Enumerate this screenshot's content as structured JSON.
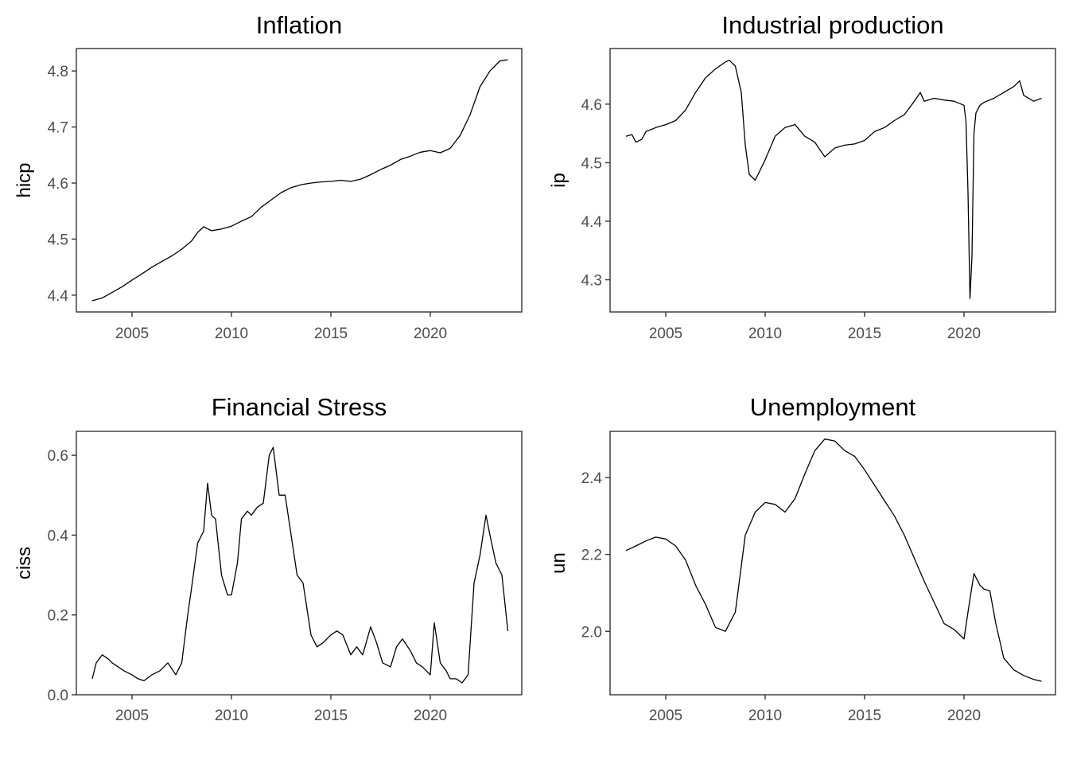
{
  "line_color": "#000000",
  "chart_data": [
    {
      "type": "line",
      "title": "Inflation",
      "xlabel": "",
      "ylabel": "hicp",
      "xlim": [
        2002.2,
        2024.6
      ],
      "ylim": [
        4.37,
        4.84
      ],
      "xticks": [
        2005,
        2010,
        2015,
        2020
      ],
      "xtick_labels": [
        "2005",
        "2010",
        "2015",
        "2020"
      ],
      "yticks": [
        4.4,
        4.5,
        4.6,
        4.7,
        4.8
      ],
      "ytick_labels": [
        "4.4",
        "4.5",
        "4.6",
        "4.7",
        "4.8"
      ],
      "grid": false,
      "series": [
        {
          "x": [
            2003.0,
            2003.5,
            2004.0,
            2004.5,
            2005.0,
            2005.5,
            2006.0,
            2006.5,
            2007.0,
            2007.5,
            2008.0,
            2008.3,
            2008.6,
            2009.0,
            2009.5,
            2010.0,
            2010.5,
            2011.0,
            2011.5,
            2012.0,
            2012.5,
            2013.0,
            2013.5,
            2014.0,
            2014.5,
            2015.0,
            2015.5,
            2016.0,
            2016.5,
            2017.0,
            2017.5,
            2018.0,
            2018.5,
            2019.0,
            2019.5,
            2020.0,
            2020.5,
            2021.0,
            2021.5,
            2022.0,
            2022.5,
            2023.0,
            2023.5,
            2023.9
          ],
          "y": [
            4.39,
            4.395,
            4.405,
            4.415,
            4.427,
            4.438,
            4.45,
            4.46,
            4.47,
            4.482,
            4.497,
            4.512,
            4.522,
            4.515,
            4.518,
            4.523,
            4.532,
            4.54,
            4.557,
            4.57,
            4.583,
            4.592,
            4.597,
            4.6,
            4.602,
            4.603,
            4.605,
            4.603,
            4.607,
            4.615,
            4.624,
            4.632,
            4.642,
            4.648,
            4.655,
            4.658,
            4.654,
            4.662,
            4.685,
            4.722,
            4.772,
            4.8,
            4.818,
            4.82
          ]
        }
      ]
    },
    {
      "type": "line",
      "title": "Industrial production",
      "xlabel": "",
      "ylabel": "ip",
      "xlim": [
        2002.2,
        2024.6
      ],
      "ylim": [
        4.245,
        4.695
      ],
      "xticks": [
        2005,
        2010,
        2015,
        2020
      ],
      "xtick_labels": [
        "2005",
        "2010",
        "2015",
        "2020"
      ],
      "yticks": [
        4.3,
        4.4,
        4.5,
        4.6
      ],
      "ytick_labels": [
        "4.3",
        "4.4",
        "4.5",
        "4.6"
      ],
      "grid": false,
      "series": [
        {
          "x": [
            2003.0,
            2003.3,
            2003.5,
            2003.8,
            2004.0,
            2004.5,
            2005.0,
            2005.5,
            2006.0,
            2006.5,
            2007.0,
            2007.5,
            2008.0,
            2008.2,
            2008.5,
            2008.8,
            2009.0,
            2009.2,
            2009.5,
            2010.0,
            2010.5,
            2011.0,
            2011.5,
            2012.0,
            2012.5,
            2013.0,
            2013.5,
            2014.0,
            2014.5,
            2015.0,
            2015.5,
            2016.0,
            2016.5,
            2017.0,
            2017.5,
            2017.8,
            2018.0,
            2018.5,
            2019.0,
            2019.5,
            2020.0,
            2020.1,
            2020.2,
            2020.3,
            2020.4,
            2020.5,
            2020.6,
            2020.8,
            2021.0,
            2021.5,
            2022.0,
            2022.5,
            2022.8,
            2023.0,
            2023.5,
            2023.9
          ],
          "y": [
            4.545,
            4.548,
            4.535,
            4.54,
            4.553,
            4.56,
            4.565,
            4.572,
            4.59,
            4.62,
            4.645,
            4.66,
            4.672,
            4.675,
            4.665,
            4.62,
            4.53,
            4.48,
            4.47,
            4.505,
            4.545,
            4.56,
            4.565,
            4.545,
            4.535,
            4.51,
            4.525,
            4.53,
            4.532,
            4.538,
            4.553,
            4.56,
            4.572,
            4.582,
            4.605,
            4.62,
            4.605,
            4.61,
            4.607,
            4.605,
            4.598,
            4.57,
            4.45,
            4.268,
            4.34,
            4.55,
            4.585,
            4.598,
            4.603,
            4.61,
            4.62,
            4.63,
            4.64,
            4.615,
            4.605,
            4.61
          ]
        }
      ]
    },
    {
      "type": "line",
      "title": "Financial Stress",
      "xlabel": "",
      "ylabel": "ciss",
      "xlim": [
        2002.2,
        2024.6
      ],
      "ylim": [
        0.0,
        0.66
      ],
      "xticks": [
        2005,
        2010,
        2015,
        2020
      ],
      "xtick_labels": [
        "2005",
        "2010",
        "2015",
        "2020"
      ],
      "yticks": [
        0.0,
        0.2,
        0.4,
        0.6
      ],
      "ytick_labels": [
        "0.0",
        "0.2",
        "0.4",
        "0.6"
      ],
      "grid": false,
      "series": [
        {
          "x": [
            2003.0,
            2003.2,
            2003.5,
            2003.8,
            2004.0,
            2004.3,
            2004.6,
            2005.0,
            2005.3,
            2005.6,
            2006.0,
            2006.4,
            2006.8,
            2007.2,
            2007.5,
            2007.8,
            2008.0,
            2008.3,
            2008.6,
            2008.8,
            2009.0,
            2009.2,
            2009.5,
            2009.8,
            2010.0,
            2010.3,
            2010.5,
            2010.8,
            2011.0,
            2011.3,
            2011.6,
            2011.9,
            2012.1,
            2012.4,
            2012.7,
            2013.0,
            2013.3,
            2013.6,
            2014.0,
            2014.3,
            2014.6,
            2015.0,
            2015.3,
            2015.6,
            2016.0,
            2016.3,
            2016.6,
            2017.0,
            2017.3,
            2017.6,
            2018.0,
            2018.3,
            2018.6,
            2019.0,
            2019.3,
            2019.6,
            2020.0,
            2020.2,
            2020.5,
            2020.8,
            2021.0,
            2021.3,
            2021.6,
            2021.9,
            2022.2,
            2022.5,
            2022.8,
            2023.0,
            2023.3,
            2023.6,
            2023.9
          ],
          "y": [
            0.04,
            0.08,
            0.1,
            0.09,
            0.08,
            0.07,
            0.06,
            0.05,
            0.04,
            0.035,
            0.05,
            0.06,
            0.08,
            0.05,
            0.08,
            0.2,
            0.27,
            0.38,
            0.41,
            0.53,
            0.45,
            0.44,
            0.3,
            0.25,
            0.25,
            0.33,
            0.44,
            0.46,
            0.45,
            0.47,
            0.48,
            0.6,
            0.62,
            0.5,
            0.5,
            0.4,
            0.3,
            0.28,
            0.15,
            0.12,
            0.13,
            0.15,
            0.16,
            0.15,
            0.1,
            0.12,
            0.1,
            0.17,
            0.13,
            0.08,
            0.07,
            0.12,
            0.14,
            0.11,
            0.08,
            0.07,
            0.05,
            0.18,
            0.08,
            0.06,
            0.04,
            0.04,
            0.03,
            0.05,
            0.28,
            0.35,
            0.45,
            0.4,
            0.33,
            0.3,
            0.16
          ]
        }
      ]
    },
    {
      "type": "line",
      "title": "Unemployment",
      "xlabel": "",
      "ylabel": "un",
      "xlim": [
        2002.2,
        2024.6
      ],
      "ylim": [
        1.835,
        2.52
      ],
      "xticks": [
        2005,
        2010,
        2015,
        2020
      ],
      "xtick_labels": [
        "2005",
        "2010",
        "2015",
        "2020"
      ],
      "yticks": [
        2.0,
        2.2,
        2.4
      ],
      "ytick_labels": [
        "2.0",
        "2.2",
        "2.4"
      ],
      "grid": false,
      "series": [
        {
          "x": [
            2003.0,
            2003.5,
            2004.0,
            2004.5,
            2005.0,
            2005.5,
            2006.0,
            2006.5,
            2007.0,
            2007.5,
            2008.0,
            2008.5,
            2009.0,
            2009.5,
            2010.0,
            2010.5,
            2011.0,
            2011.5,
            2012.0,
            2012.5,
            2013.0,
            2013.5,
            2014.0,
            2014.5,
            2015.0,
            2015.5,
            2016.0,
            2016.5,
            2017.0,
            2017.5,
            2018.0,
            2018.5,
            2019.0,
            2019.5,
            2020.0,
            2020.2,
            2020.5,
            2020.8,
            2021.0,
            2021.3,
            2021.6,
            2022.0,
            2022.5,
            2023.0,
            2023.5,
            2023.9
          ],
          "y": [
            2.21,
            2.222,
            2.235,
            2.245,
            2.24,
            2.222,
            2.185,
            2.12,
            2.07,
            2.01,
            2.0,
            2.05,
            2.25,
            2.31,
            2.335,
            2.33,
            2.31,
            2.345,
            2.41,
            2.47,
            2.5,
            2.495,
            2.47,
            2.455,
            2.42,
            2.38,
            2.34,
            2.3,
            2.25,
            2.19,
            2.13,
            2.075,
            2.02,
            2.005,
            1.98,
            2.05,
            2.15,
            2.12,
            2.11,
            2.105,
            2.02,
            1.93,
            1.9,
            1.885,
            1.875,
            1.87
          ]
        }
      ]
    }
  ]
}
